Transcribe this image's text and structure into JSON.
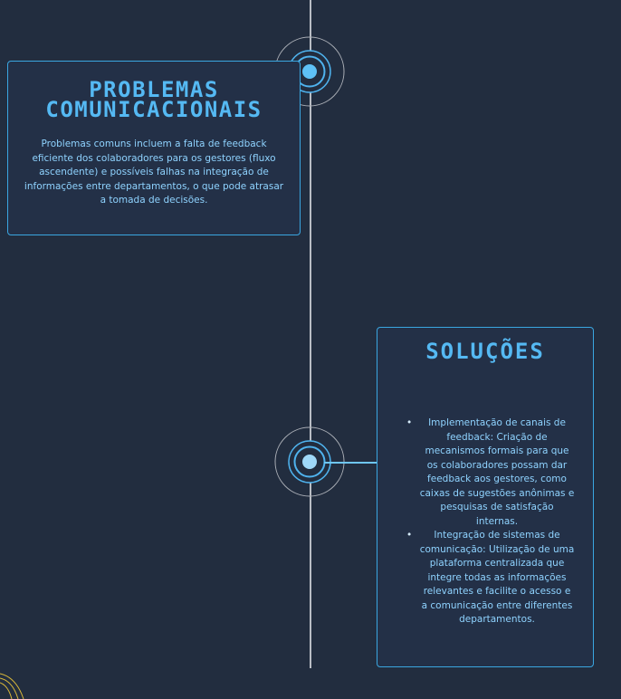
{
  "problems": {
    "title": "PROBLEMAS COMUNICACIONAIS",
    "text": "Problemas comuns incluem a falta de feedback eficiente dos colaboradores para os gestores (fluxo ascendente) e possíveis falhas na integração de informações entre departamentos, o que pode atrasar a tomada de decisões."
  },
  "solutions": {
    "title": "SOLUÇÕES",
    "items": [
      "Implementação de canais de feedback: Criação de mecanismos formais para que os colaboradores possam dar feedback aos gestores, como caixas de sugestões anônimas e pesquisas de satisfação internas.",
      "Integração de sistemas de comunicação: Utilização de uma plataforma centralizada que integre todas as informações relevantes e facilite o acesso e a comunicação entre diferentes departamentos."
    ],
    "bullet": "•"
  },
  "colors": {
    "background": "#222d3f",
    "accent": "#55b9f3",
    "text": "#8fd3ff",
    "line": "#b9bdc4"
  }
}
